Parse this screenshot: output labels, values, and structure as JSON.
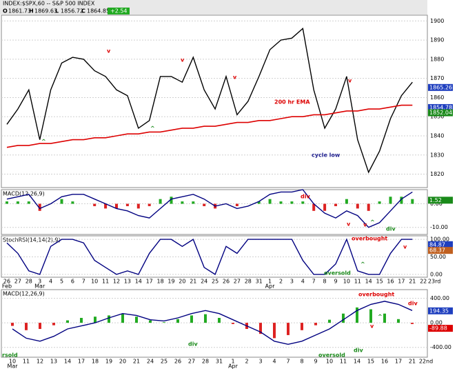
{
  "chart_data": [
    {
      "type": "line",
      "title": "INDEX:$SPX,60 -- S&P 500 INDEX",
      "quote": {
        "labels": [
          "O",
          "H",
          "L",
          "C"
        ],
        "values": [
          1861.73,
          1869.63,
          1856.72,
          1864.85
        ]
      },
      "change": {
        "value": 2.54,
        "label": "+2.54"
      },
      "series": [
        {
          "color": "#000000",
          "values": [
            1846,
            1854,
            1864,
            1838,
            1864,
            1878,
            1881,
            1880,
            1874,
            1871,
            1864,
            1861,
            1844,
            1848,
            1871,
            1871,
            1868,
            1881,
            1864,
            1854,
            1871,
            1851,
            1858,
            1871,
            1885,
            1890,
            1891,
            1896,
            1864,
            1844,
            1854,
            1871,
            1838,
            1821,
            1832,
            1849,
            1861,
            1868,
            null,
            null
          ]
        },
        {
          "name": "200 hr EMA",
          "color": "#dd0000",
          "values": [
            1834,
            1835,
            1835,
            1836,
            1836,
            1837,
            1838,
            1838,
            1839,
            1839,
            1840,
            1841,
            1841,
            1842,
            1842,
            1843,
            1844,
            1844,
            1845,
            1845,
            1846,
            1847,
            1847,
            1848,
            1848,
            1849,
            1850,
            1850,
            1851,
            1851,
            1852,
            1853,
            1853,
            1854,
            1854,
            1855,
            1856,
            1856,
            null,
            null
          ]
        }
      ],
      "annotations": [
        "cycle low",
        "v",
        "^",
        "v",
        "^",
        "v",
        "v"
      ],
      "last_values": [
        1865.26,
        1854.78,
        1852.04
      ],
      "last_colors": [
        "#1f3fbf",
        "#1f3fbf",
        "#1a8a1a"
      ],
      "ylim": [
        1813,
        1903
      ],
      "yticks": [
        1820,
        1830,
        1840,
        1850,
        1860,
        1870,
        1880,
        1890,
        1900
      ],
      "grid": true
    },
    {
      "type": "macd",
      "title": "MACD(12,26,9)",
      "values": [
        2,
        3,
        4,
        -2,
        0,
        3,
        4,
        4,
        2,
        0,
        -2,
        -3,
        -5,
        -6,
        -2,
        2,
        3,
        4,
        2,
        -1,
        0,
        -2,
        -1,
        1,
        4,
        5,
        5,
        6,
        0,
        -4,
        -6,
        -3,
        -5,
        -10,
        -8,
        -3,
        2,
        5,
        null,
        null
      ],
      "histogram": [
        1,
        1,
        1,
        -3,
        0,
        2,
        1,
        0,
        -1,
        -2,
        -2,
        -1,
        -2,
        -1,
        2,
        3,
        1,
        1,
        -1,
        -2,
        0,
        -1,
        0,
        1,
        2,
        1,
        1,
        1,
        -3,
        -3,
        -1,
        2,
        -2,
        -3,
        1,
        3,
        3,
        2,
        null,
        null
      ],
      "annotations": [
        "div",
        "v",
        "v",
        "^",
        "div"
      ],
      "last_values": [
        1.52
      ],
      "last_colors": [
        "#1a8a1a"
      ],
      "ylim": [
        -13,
        6
      ],
      "yticks": [
        {
          "value": 0,
          "label": "0.00"
        },
        {
          "value": -10,
          "label": "-10.00"
        }
      ],
      "grid": true
    },
    {
      "type": "line",
      "title": "StochRSI(14,14(2),9)",
      "series": [
        {
          "color": "#000080",
          "values": [
            90,
            60,
            10,
            0,
            80,
            100,
            100,
            90,
            40,
            20,
            0,
            10,
            0,
            60,
            100,
            100,
            80,
            100,
            20,
            0,
            80,
            60,
            100,
            100,
            100,
            100,
            100,
            40,
            0,
            0,
            30,
            100,
            10,
            0,
            0,
            60,
            100,
            100,
            null,
            null
          ]
        }
      ],
      "annotations": [
        "overbought",
        "oversold",
        "^",
        "v"
      ],
      "last_values": [
        84.87,
        68.37
      ],
      "last_colors": [
        "#1f3fbf",
        "#c06020"
      ],
      "categories": [
        "26",
        "27",
        "28",
        "3",
        "4",
        "5",
        "6",
        "7",
        "10",
        "11",
        "12",
        "13",
        "14",
        "17",
        "18",
        "19",
        "20",
        "21",
        "24",
        "25",
        "26",
        "27",
        "28",
        "31",
        "1",
        "2",
        "3",
        "4",
        "7",
        "8",
        "9",
        "10",
        "11",
        "14",
        "15",
        "16",
        "17",
        "21",
        "22",
        "23rd"
      ],
      "months": [
        "Feb",
        "Mar",
        "Apr"
      ],
      "ylim": [
        -8,
        110
      ],
      "yticks": [
        {
          "value": 100,
          "label": "100.00"
        },
        {
          "value": 50,
          "label": "50.00"
        },
        {
          "value": 0,
          "label": "0.00"
        }
      ],
      "grid": true
    },
    {
      "type": "macd",
      "title": "MACD(12,26,9)",
      "values": [
        -100,
        -250,
        -300,
        -220,
        -100,
        -50,
        0,
        80,
        150,
        120,
        50,
        30,
        80,
        150,
        200,
        150,
        50,
        -50,
        -150,
        -300,
        -350,
        -300,
        -200,
        -100,
        50,
        200,
        300,
        350,
        300,
        200,
        null
      ],
      "histogram": [
        -50,
        -120,
        -100,
        -40,
        40,
        80,
        100,
        120,
        150,
        100,
        40,
        10,
        60,
        120,
        140,
        80,
        -20,
        -100,
        -180,
        -250,
        -200,
        -120,
        -40,
        50,
        150,
        250,
        220,
        150,
        60,
        -20,
        null
      ],
      "annotations": [
        "overbought",
        "oversold",
        "rsold",
        "div",
        "div",
        "div",
        "^",
        "v"
      ],
      "last_values": [
        194.35,
        -89.88
      ],
      "last_colors": [
        "#1f3fbf",
        "#dd0000"
      ],
      "categories": [
        "10",
        "11",
        "12",
        "13",
        "14",
        "17",
        "18",
        "19",
        "20",
        "21",
        "24",
        "25",
        "26",
        "27",
        "28",
        "31",
        "1",
        "2",
        "3",
        "4",
        "7",
        "8",
        "9",
        "10",
        "11",
        "14",
        "15",
        "16",
        "17",
        "21",
        "22nd"
      ],
      "months": [
        "Mar",
        "Apr"
      ],
      "ylim": [
        -560,
        540
      ],
      "yticks": [
        {
          "value": 400,
          "label": "400.00"
        },
        {
          "value": 0,
          "label": "0.00"
        },
        {
          "value": -400,
          "label": "-400.00"
        }
      ],
      "grid": true
    }
  ]
}
